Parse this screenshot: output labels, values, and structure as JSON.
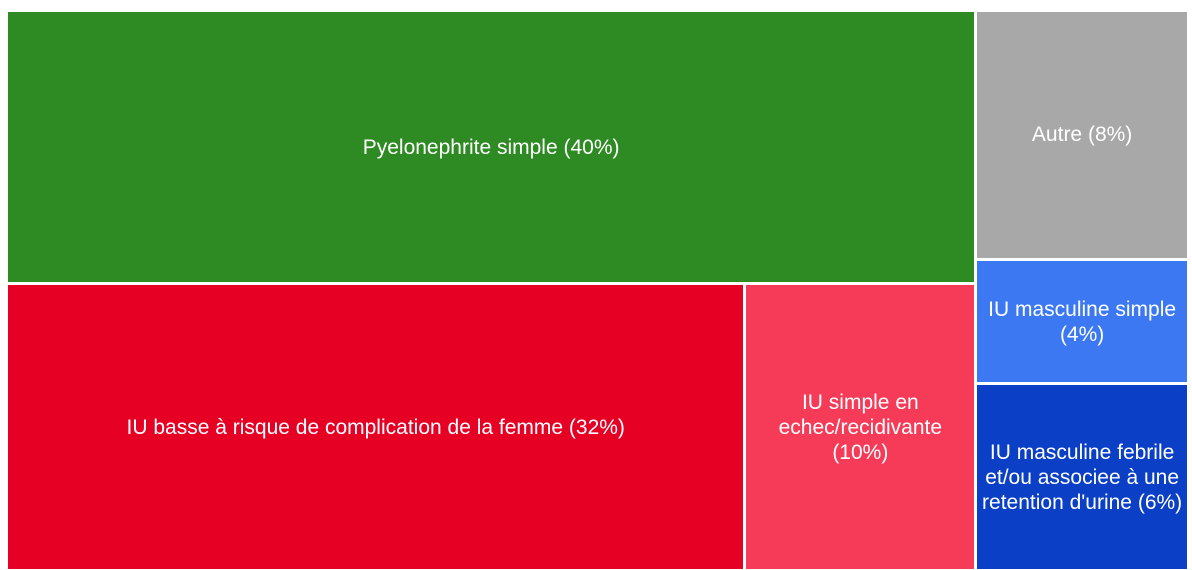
{
  "chart_data": {
    "type": "treemap",
    "categories": [
      "Pyelonephrite simple (40%)",
      "IU basse à risque de complication de la femme (32%)",
      "IU simple en echec/recidivante (10%)",
      "Autre (8%)",
      "IU masculine simple (4%)",
      "IU masculine febrile et/ou associee à une retention d'urine (6%)"
    ],
    "values": [
      40,
      32,
      10,
      8,
      4,
      6
    ],
    "colors": [
      "#2e8a22",
      "#e50024",
      "#f63b58",
      "#a8a8a8",
      "#3b78f2",
      "#0a3fc6"
    ]
  }
}
